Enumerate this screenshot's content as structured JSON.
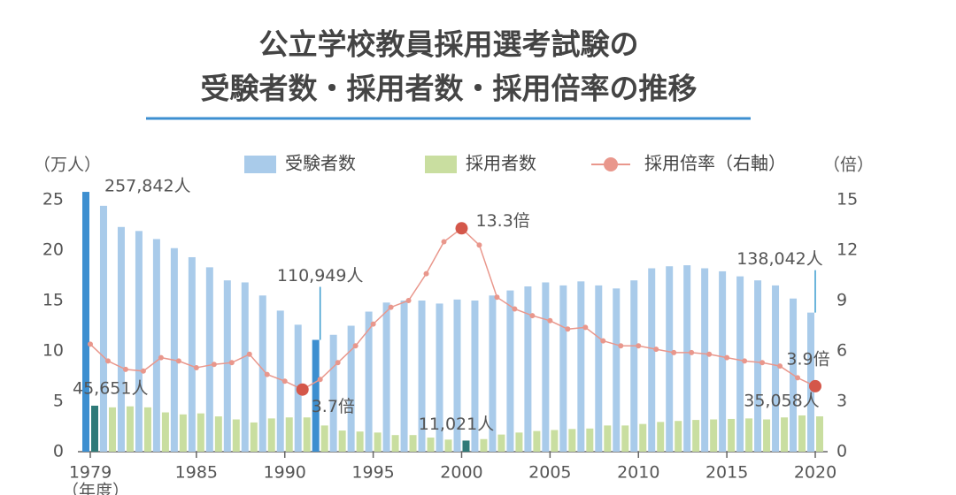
{
  "chart_data": {
    "type": "bar-line",
    "title": [
      "公立学校教員採用選考試験の",
      "受験者数・採用者数・採用倍率の推移"
    ],
    "ylabel": "（万人）",
    "y2label": "（倍）",
    "xlabel": "（年度）",
    "categories": [
      1979,
      1980,
      1981,
      1982,
      1983,
      1984,
      1985,
      1986,
      1987,
      1988,
      1989,
      1990,
      1991,
      1992,
      1993,
      1994,
      1995,
      1996,
      1997,
      1998,
      1999,
      2000,
      2001,
      2002,
      2003,
      2004,
      2005,
      2006,
      2007,
      2008,
      2009,
      2010,
      2011,
      2012,
      2013,
      2014,
      2015,
      2016,
      2017,
      2018,
      2019,
      2020
    ],
    "xticks": [
      1979,
      1985,
      1990,
      1995,
      2000,
      2005,
      2010,
      2015,
      2020
    ],
    "ylim": [
      0,
      25
    ],
    "yticks": [
      0,
      5,
      10,
      15,
      20,
      25
    ],
    "y2lim": [
      0,
      15
    ],
    "y2ticks": [
      0,
      3,
      6,
      9,
      12,
      15
    ],
    "legend": "top",
    "series": [
      {
        "name": "受験者数",
        "color": "#a9cbea",
        "highlight_color": "#3d8fd0",
        "highlight": [
          1979,
          1992
        ],
        "label_color": "#3a9ccf",
        "values": [
          25.7842,
          24.4,
          22.3,
          21.9,
          21.1,
          20.2,
          19.3,
          18.3,
          17.0,
          16.8,
          15.5,
          14.0,
          12.6,
          11.0949,
          11.6,
          12.5,
          13.9,
          14.8,
          15.0,
          15.0,
          14.7,
          15.1,
          15.0,
          15.5,
          16.0,
          16.4,
          16.8,
          16.5,
          16.9,
          16.5,
          16.2,
          17.0,
          18.2,
          18.4,
          18.5,
          18.2,
          17.9,
          17.4,
          17.0,
          16.5,
          15.2,
          13.8042
        ],
        "value_labels": [
          "257,842人",
          null,
          null,
          null,
          null,
          null,
          null,
          null,
          null,
          null,
          null,
          null,
          null,
          "110,949人",
          null,
          null,
          null,
          null,
          null,
          null,
          null,
          null,
          null,
          null,
          null,
          null,
          null,
          null,
          null,
          null,
          null,
          null,
          null,
          null,
          null,
          null,
          null,
          null,
          null,
          null,
          null,
          "138,042人"
        ]
      },
      {
        "name": "採用者数",
        "color": "#c9dea0",
        "highlight_color": "#2f7a78",
        "highlight": [
          1979,
          2000
        ],
        "label_color": "#2f8a82",
        "values": [
          4.5651,
          4.4,
          4.5,
          4.4,
          3.9,
          3.7,
          3.8,
          3.5,
          3.2,
          2.9,
          3.3,
          3.4,
          3.4,
          2.6,
          2.1,
          2.0,
          1.9,
          1.65,
          1.65,
          1.4,
          1.2,
          1.1021,
          1.25,
          1.7,
          1.9,
          2.05,
          2.15,
          2.25,
          2.3,
          2.6,
          2.6,
          2.75,
          2.95,
          3.05,
          3.15,
          3.2,
          3.25,
          3.3,
          3.2,
          3.4,
          3.6,
          3.5058
        ],
        "value_labels": [
          "45,651人",
          null,
          null,
          null,
          null,
          null,
          null,
          null,
          null,
          null,
          null,
          null,
          null,
          null,
          null,
          null,
          null,
          null,
          null,
          null,
          null,
          "11,021人",
          null,
          null,
          null,
          null,
          null,
          null,
          null,
          null,
          null,
          null,
          null,
          null,
          null,
          null,
          null,
          null,
          null,
          null,
          null,
          "35,058人"
        ]
      },
      {
        "name": "採用倍率（右軸）",
        "color": "#e9978c",
        "highlight_color": "#d4574a",
        "label_color": "#d4574a",
        "axis": "y2",
        "values": [
          6.4,
          5.4,
          4.9,
          4.8,
          5.6,
          5.4,
          5.0,
          5.2,
          5.3,
          5.8,
          4.6,
          4.2,
          3.7,
          4.3,
          5.3,
          6.3,
          7.6,
          8.6,
          9.0,
          10.6,
          12.5,
          13.3,
          12.3,
          9.2,
          8.5,
          8.1,
          7.8,
          7.3,
          7.4,
          6.6,
          6.3,
          6.3,
          6.1,
          5.9,
          5.9,
          5.8,
          5.6,
          5.4,
          5.3,
          5.1,
          4.4,
          3.9
        ],
        "value_labels": [
          null,
          null,
          null,
          null,
          null,
          null,
          null,
          null,
          null,
          null,
          null,
          null,
          "3.7倍",
          null,
          null,
          null,
          null,
          null,
          null,
          null,
          null,
          "13.3倍",
          null,
          null,
          null,
          null,
          null,
          null,
          null,
          null,
          null,
          null,
          null,
          null,
          null,
          null,
          null,
          null,
          null,
          null,
          null,
          "3.9倍"
        ]
      }
    ]
  }
}
